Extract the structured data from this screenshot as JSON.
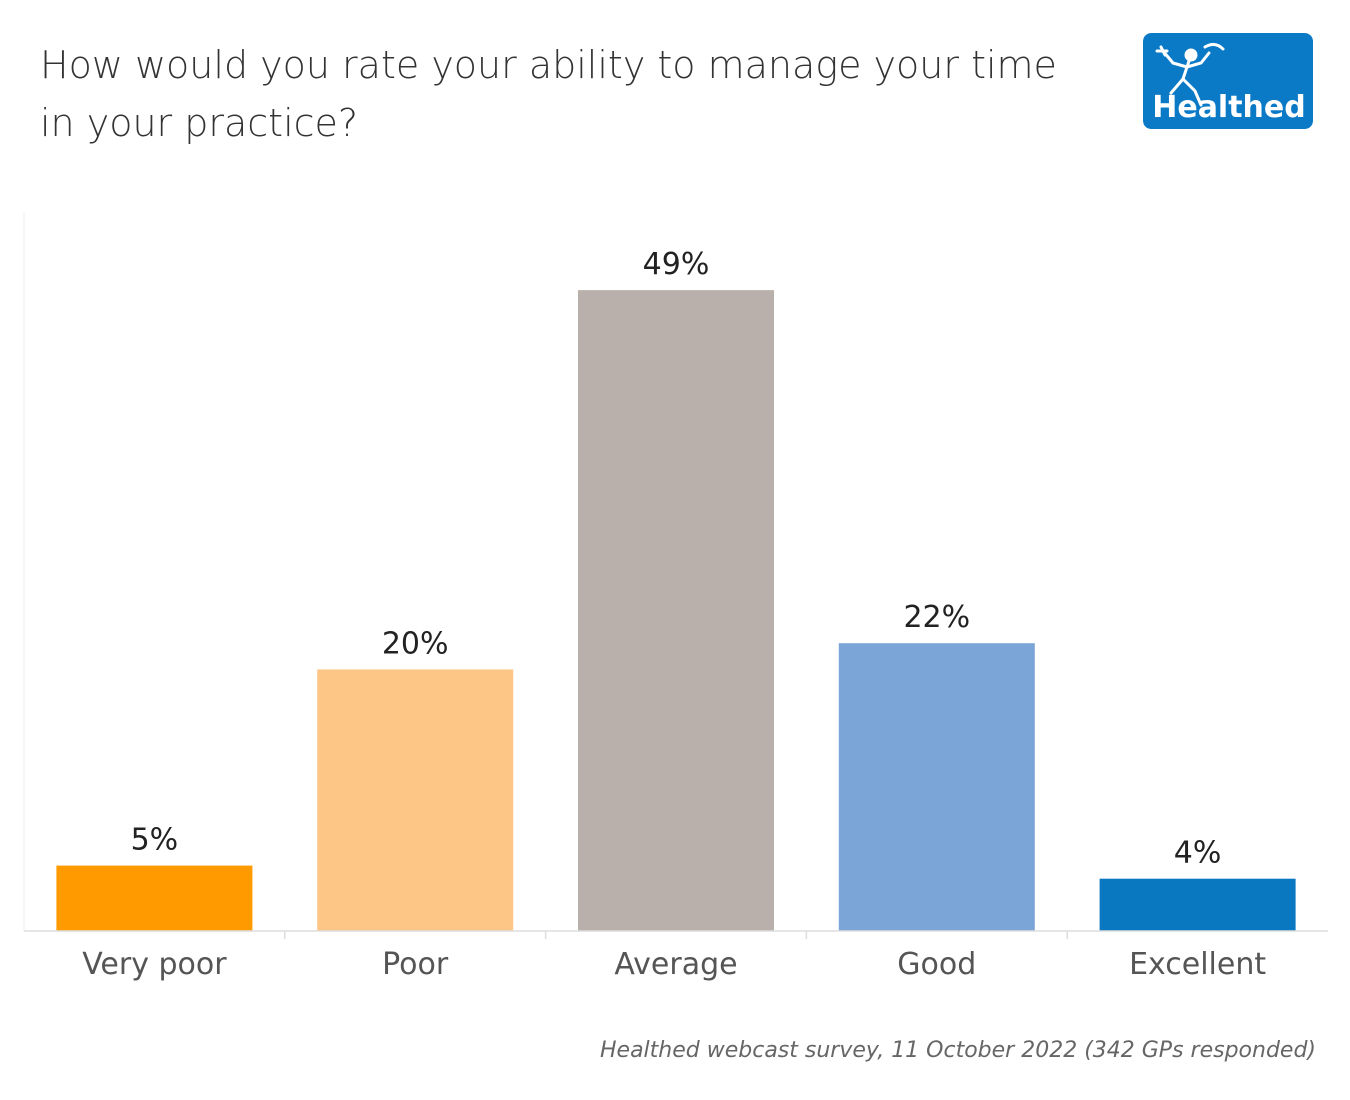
{
  "header": {
    "title": "How would you rate your ability to manage your time in your practice?",
    "logo_text": "Healthed",
    "logo_color": "#0a79c6"
  },
  "chart_data": {
    "type": "bar",
    "title": "How would you rate your ability to manage your time in your practice?",
    "xlabel": "",
    "ylabel": "",
    "categories": [
      "Very poor",
      "Poor",
      "Average",
      "Good",
      "Excellent"
    ],
    "values": [
      5,
      20,
      49,
      22,
      4
    ],
    "value_labels": [
      "5%",
      "20%",
      "49%",
      "22%",
      "4%"
    ],
    "unit": "%",
    "colors": [
      "#ff9a00",
      "#fdc686",
      "#bab0ab",
      "#7ba5d7",
      "#0a77c1"
    ],
    "ylim": [
      0,
      55
    ],
    "grid": false,
    "legend": "none"
  },
  "footer": {
    "source": "Healthed webcast survey, 11 October 2022 (342 GPs responded)"
  }
}
